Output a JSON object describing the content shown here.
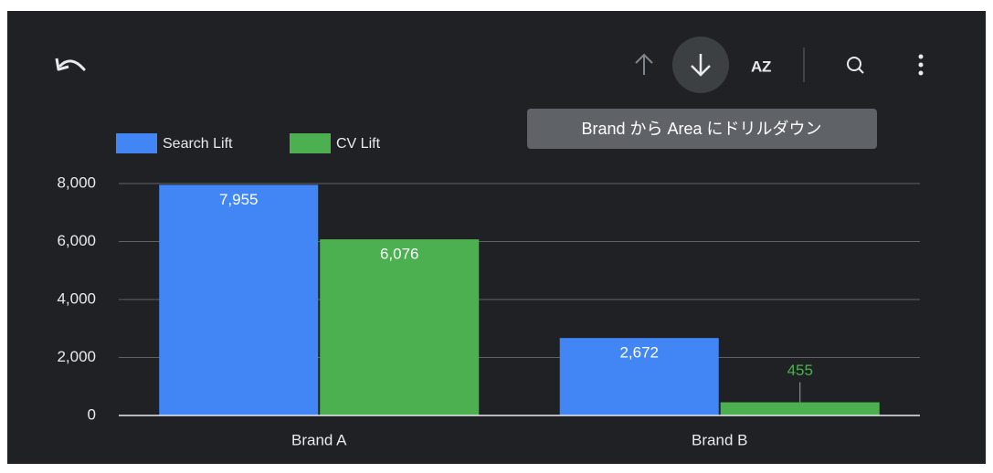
{
  "tooltip": "Brand から Area にドリルダウン",
  "chart_data": {
    "type": "bar",
    "categories": [
      "Brand A",
      "Brand B"
    ],
    "series": [
      {
        "name": "Search Lift",
        "color": "#4285f4",
        "values": [
          7955,
          2672
        ],
        "value_labels": [
          "7,955",
          "2,672"
        ]
      },
      {
        "name": "CV Lift",
        "color": "#4caf50",
        "values": [
          6076,
          455
        ],
        "value_labels": [
          "6,076",
          "455"
        ]
      }
    ],
    "ylim": [
      0,
      8000
    ],
    "yticks": [
      0,
      {
        "value": 2000,
        "label": "2,000"
      },
      {
        "value": 4000,
        "label": "4,000"
      },
      {
        "value": 6000,
        "label": "6,000"
      },
      {
        "value": 8000,
        "label": "8,000"
      }
    ],
    "grid": true,
    "legend": "top-left"
  }
}
